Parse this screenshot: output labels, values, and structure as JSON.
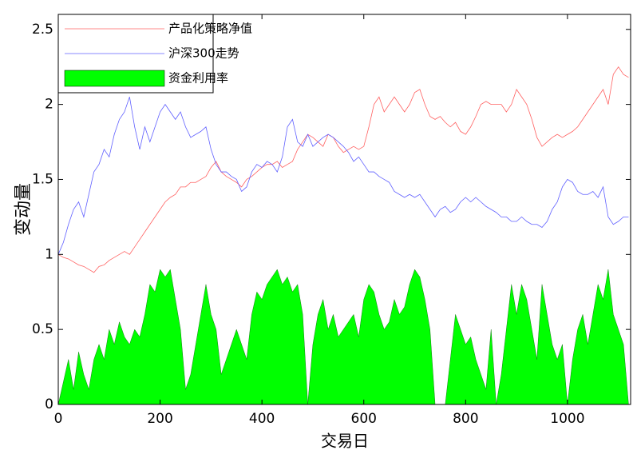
{
  "chart_data": {
    "type": "line",
    "xlabel": "交易日",
    "ylabel": "变动量",
    "xlim": [
      0,
      1124
    ],
    "xticks": [
      0,
      200,
      400,
      600,
      800,
      1000
    ],
    "ylim": [
      0,
      2.6
    ],
    "yticks": [
      0,
      0.5,
      1,
      1.5,
      2,
      2.5
    ],
    "legend": "upper left",
    "x": [
      0,
      10,
      20,
      30,
      40,
      50,
      60,
      70,
      80,
      90,
      100,
      110,
      120,
      130,
      140,
      150,
      160,
      170,
      180,
      190,
      200,
      210,
      220,
      230,
      240,
      250,
      260,
      270,
      280,
      290,
      300,
      310,
      320,
      330,
      340,
      350,
      360,
      370,
      380,
      390,
      400,
      410,
      420,
      430,
      440,
      450,
      460,
      470,
      480,
      490,
      500,
      510,
      520,
      530,
      540,
      550,
      560,
      570,
      580,
      590,
      600,
      610,
      620,
      630,
      640,
      650,
      660,
      670,
      680,
      690,
      700,
      710,
      720,
      730,
      740,
      750,
      760,
      770,
      780,
      790,
      800,
      810,
      820,
      830,
      840,
      850,
      860,
      870,
      880,
      890,
      900,
      910,
      920,
      930,
      940,
      950,
      960,
      970,
      980,
      990,
      1000,
      1010,
      1020,
      1030,
      1040,
      1050,
      1060,
      1070,
      1080,
      1090,
      1100,
      1110,
      1120
    ],
    "series": [
      {
        "name": "产品化策略净值",
        "color": "#ff6060",
        "kind": "line",
        "values": [
          1.0,
          0.98,
          0.97,
          0.95,
          0.93,
          0.92,
          0.9,
          0.88,
          0.92,
          0.93,
          0.96,
          0.98,
          1.0,
          1.02,
          1.0,
          1.05,
          1.1,
          1.15,
          1.2,
          1.25,
          1.3,
          1.35,
          1.38,
          1.4,
          1.45,
          1.45,
          1.48,
          1.48,
          1.5,
          1.52,
          1.58,
          1.62,
          1.55,
          1.52,
          1.5,
          1.48,
          1.45,
          1.5,
          1.52,
          1.55,
          1.58,
          1.6,
          1.6,
          1.62,
          1.58,
          1.6,
          1.62,
          1.7,
          1.75,
          1.8,
          1.78,
          1.75,
          1.72,
          1.8,
          1.78,
          1.72,
          1.68,
          1.7,
          1.72,
          1.7,
          1.72,
          1.85,
          2.0,
          2.05,
          1.95,
          2.0,
          2.05,
          2.0,
          1.95,
          2.0,
          2.08,
          2.1,
          2.0,
          1.92,
          1.9,
          1.92,
          1.88,
          1.85,
          1.88,
          1.82,
          1.8,
          1.85,
          1.92,
          2.0,
          2.02,
          2.0,
          2.0,
          2.0,
          1.95,
          2.0,
          2.1,
          2.05,
          2.0,
          1.9,
          1.78,
          1.72,
          1.75,
          1.78,
          1.8,
          1.78,
          1.8,
          1.82,
          1.85,
          1.9,
          1.95,
          2.0,
          2.05,
          2.1,
          2.0,
          2.2,
          2.25,
          2.2,
          2.18
        ]
      },
      {
        "name": "沪深300走势",
        "color": "#6060ff",
        "kind": "line",
        "values": [
          1.0,
          1.08,
          1.2,
          1.3,
          1.35,
          1.25,
          1.4,
          1.55,
          1.6,
          1.7,
          1.65,
          1.8,
          1.9,
          1.95,
          2.05,
          1.85,
          1.7,
          1.85,
          1.75,
          1.85,
          1.95,
          2.0,
          1.95,
          1.9,
          1.95,
          1.85,
          1.78,
          1.8,
          1.82,
          1.85,
          1.7,
          1.6,
          1.55,
          1.55,
          1.52,
          1.5,
          1.42,
          1.45,
          1.55,
          1.6,
          1.58,
          1.62,
          1.6,
          1.55,
          1.65,
          1.85,
          1.9,
          1.75,
          1.72,
          1.8,
          1.72,
          1.75,
          1.78,
          1.8,
          1.78,
          1.75,
          1.72,
          1.68,
          1.62,
          1.65,
          1.6,
          1.55,
          1.55,
          1.52,
          1.5,
          1.48,
          1.42,
          1.4,
          1.38,
          1.4,
          1.38,
          1.4,
          1.35,
          1.3,
          1.25,
          1.3,
          1.32,
          1.28,
          1.3,
          1.35,
          1.38,
          1.35,
          1.38,
          1.35,
          1.32,
          1.3,
          1.28,
          1.25,
          1.25,
          1.22,
          1.22,
          1.25,
          1.22,
          1.2,
          1.2,
          1.18,
          1.22,
          1.3,
          1.35,
          1.45,
          1.5,
          1.48,
          1.42,
          1.4,
          1.4,
          1.42,
          1.38,
          1.45,
          1.25,
          1.2,
          1.22,
          1.25,
          1.25
        ]
      },
      {
        "name": "资金利用率",
        "color": "#00ff00",
        "kind": "area",
        "values": [
          0,
          0.15,
          0.3,
          0.1,
          0.35,
          0.2,
          0.1,
          0.3,
          0.4,
          0.3,
          0.5,
          0.4,
          0.55,
          0.45,
          0.4,
          0.5,
          0.45,
          0.6,
          0.8,
          0.75,
          0.9,
          0.85,
          0.9,
          0.7,
          0.5,
          0.1,
          0.2,
          0.4,
          0.6,
          0.8,
          0.6,
          0.5,
          0.2,
          0.3,
          0.4,
          0.5,
          0.4,
          0.3,
          0.6,
          0.75,
          0.7,
          0.8,
          0.85,
          0.9,
          0.8,
          0.85,
          0.75,
          0.8,
          0.6,
          0,
          0.4,
          0.6,
          0.7,
          0.5,
          0.6,
          0.45,
          0.5,
          0.55,
          0.6,
          0.45,
          0.7,
          0.8,
          0.75,
          0.6,
          0.5,
          0.55,
          0.7,
          0.6,
          0.65,
          0.8,
          0.9,
          0.85,
          0.7,
          0.5,
          0,
          0,
          0,
          0.3,
          0.6,
          0.5,
          0.4,
          0.45,
          0.3,
          0.2,
          0.1,
          0.5,
          0,
          0.2,
          0.5,
          0.8,
          0.6,
          0.8,
          0.7,
          0.5,
          0.3,
          0.8,
          0.6,
          0.4,
          0.3,
          0.4,
          0,
          0.3,
          0.5,
          0.6,
          0.4,
          0.6,
          0.8,
          0.7,
          0.9,
          0.6,
          0.5,
          0.4,
          0
        ]
      }
    ]
  }
}
